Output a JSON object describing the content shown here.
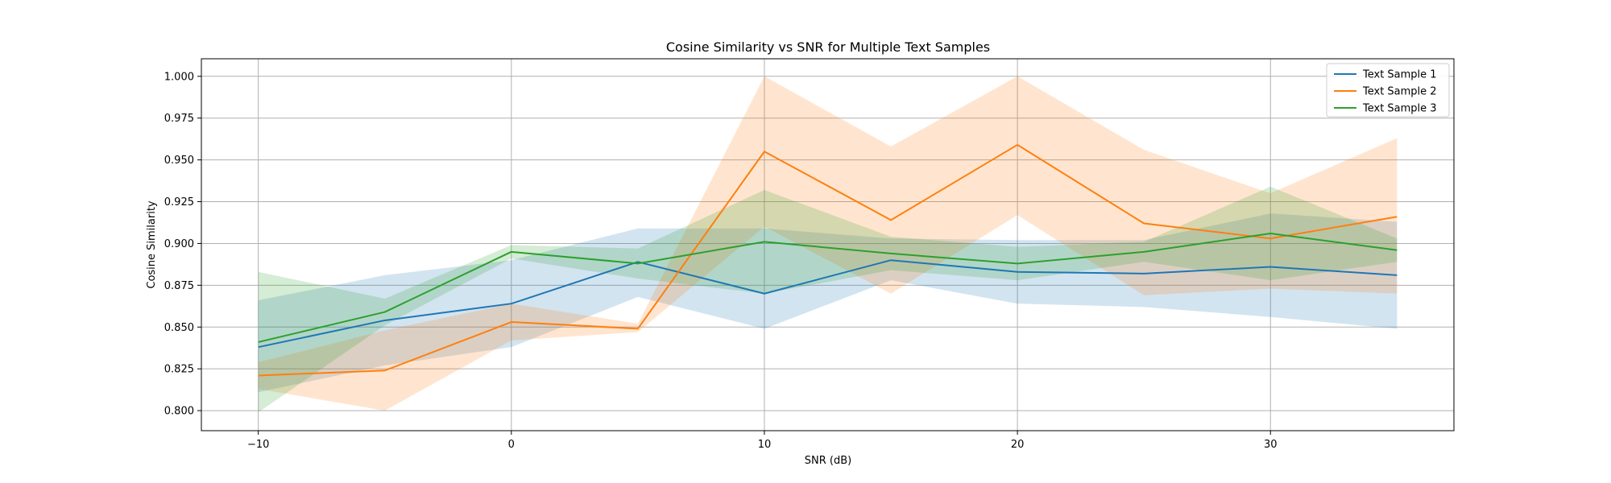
{
  "chart_data": {
    "type": "line",
    "title": "Cosine Similarity vs SNR for Multiple Text Samples",
    "xlabel": "SNR (dB)",
    "ylabel": "Cosine Similarity",
    "xlim": [
      -12.25,
      37.25
    ],
    "ylim": [
      0.788,
      1.0105
    ],
    "xticks": [
      -10,
      0,
      10,
      20,
      30
    ],
    "xtick_labels": [
      "−10",
      "0",
      "10",
      "20",
      "30"
    ],
    "yticks": [
      0.8,
      0.825,
      0.85,
      0.875,
      0.9,
      0.925,
      0.95,
      0.975,
      1.0
    ],
    "ytick_labels": [
      "0.800",
      "0.825",
      "0.850",
      "0.875",
      "0.900",
      "0.925",
      "0.950",
      "0.975",
      "1.000"
    ],
    "grid": true,
    "legend_position": "top-right",
    "x": [
      -10,
      -5,
      0,
      5,
      10,
      15,
      20,
      25,
      30,
      35
    ],
    "series": [
      {
        "name": "Text Sample 1",
        "color": "#1f77b4",
        "values": [
          0.838,
          0.854,
          0.864,
          0.889,
          0.87,
          0.89,
          0.883,
          0.882,
          0.886,
          0.881
        ],
        "lower": [
          0.811,
          0.827,
          0.838,
          0.868,
          0.849,
          0.878,
          0.864,
          0.862,
          0.856,
          0.849
        ],
        "upper": [
          0.866,
          0.881,
          0.89,
          0.909,
          0.909,
          0.903,
          0.902,
          0.902,
          0.918,
          0.913
        ]
      },
      {
        "name": "Text Sample 2",
        "color": "#ff7f0e",
        "values": [
          0.821,
          0.824,
          0.853,
          0.849,
          0.955,
          0.914,
          0.959,
          0.912,
          0.903,
          0.916
        ],
        "lower": [
          0.813,
          0.8,
          0.842,
          0.847,
          0.91,
          0.87,
          0.917,
          0.869,
          0.873,
          0.87
        ],
        "upper": [
          0.829,
          0.848,
          0.864,
          0.852,
          1.0,
          0.958,
          1.0,
          0.956,
          0.93,
          0.963
        ]
      },
      {
        "name": "Text Sample 3",
        "color": "#2ca02c",
        "values": [
          0.841,
          0.859,
          0.895,
          0.888,
          0.901,
          0.894,
          0.888,
          0.895,
          0.906,
          0.896
        ],
        "lower": [
          0.799,
          0.851,
          0.891,
          0.879,
          0.87,
          0.884,
          0.878,
          0.889,
          0.878,
          0.889
        ],
        "upper": [
          0.883,
          0.867,
          0.899,
          0.897,
          0.932,
          0.904,
          0.898,
          0.901,
          0.934,
          0.903
        ]
      }
    ]
  }
}
